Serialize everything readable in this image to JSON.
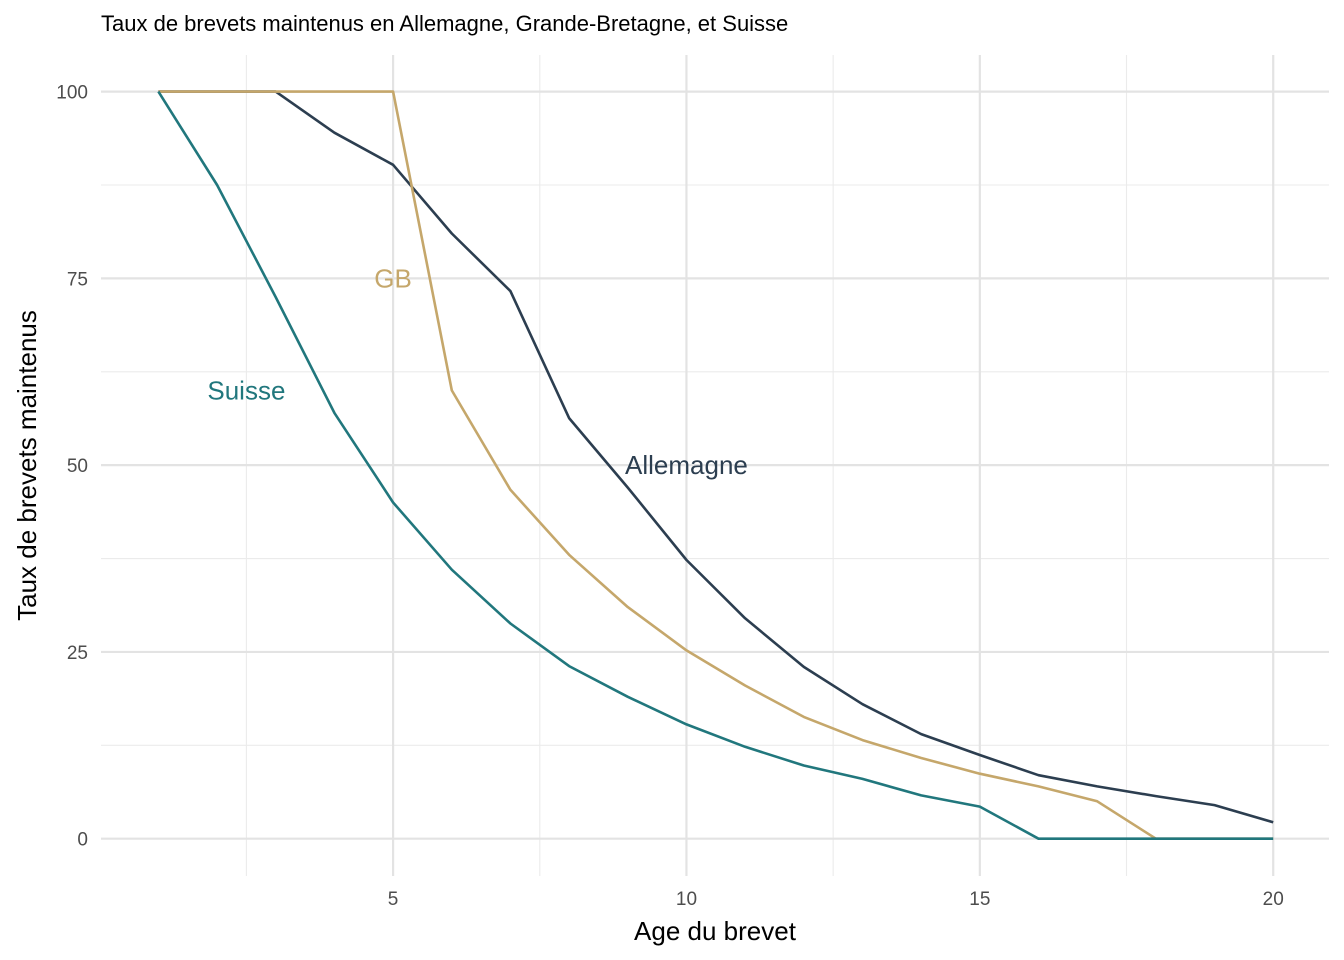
{
  "chart_data": {
    "type": "line",
    "title": "Taux de brevets maintenus en Allemagne, Grande-Bretagne, et Suisse",
    "xlabel": "Age du brevet",
    "ylabel": "Taux de brevets maintenus",
    "xlim": [
      1,
      20
    ],
    "ylim": [
      0,
      100
    ],
    "x_ticks": [
      5,
      10,
      15,
      20
    ],
    "y_ticks": [
      0,
      25,
      50,
      75,
      100
    ],
    "grid": true,
    "x": [
      1,
      2,
      3,
      4,
      5,
      6,
      7,
      8,
      9,
      10,
      11,
      12,
      13,
      14,
      15,
      16,
      17,
      18,
      19,
      20
    ],
    "series": [
      {
        "name": "Allemagne",
        "color": "#2c3e50",
        "label_at": [
          10,
          50
        ],
        "values": [
          100,
          100,
          100,
          94.5,
          90.2,
          81,
          73.3,
          56.3,
          47,
          37.3,
          29.5,
          23,
          18,
          14,
          11.2,
          8.5,
          7,
          5.7,
          4.5,
          2.2
        ]
      },
      {
        "name": "GB",
        "color": "#c5a76b",
        "label_at": [
          5,
          75
        ],
        "values": [
          100,
          100,
          100,
          100,
          100,
          60,
          46.7,
          38,
          31,
          25.2,
          20.5,
          16.3,
          13.2,
          10.8,
          8.7,
          7,
          5,
          0,
          0,
          0
        ]
      },
      {
        "name": "Suisse",
        "color": "#21777d",
        "label_at": [
          2.5,
          60
        ],
        "values": [
          100,
          87.5,
          72.5,
          57,
          45,
          36,
          28.8,
          23.1,
          19,
          15.3,
          12.3,
          9.8,
          8,
          5.8,
          4.3,
          0,
          0,
          0,
          0,
          0
        ]
      }
    ]
  }
}
